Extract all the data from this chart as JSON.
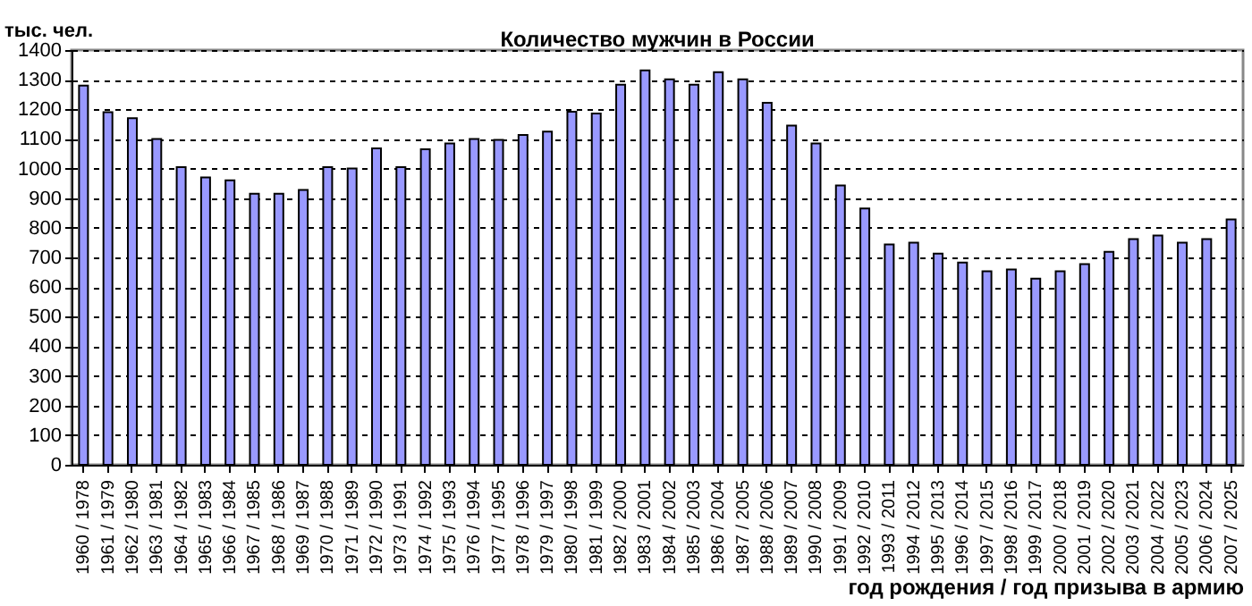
{
  "chart_data": {
    "type": "bar",
    "title": "Количество мужчин в России",
    "xlabel": "год рождения / год призыва в армию",
    "ylabel": "тыс. чел.",
    "categories": [
      "1960 / 1978",
      "1961 / 1979",
      "1962 / 1980",
      "1963 / 1981",
      "1964 / 1982",
      "1965 / 1983",
      "1966 / 1984",
      "1967 / 1985",
      "1968 / 1986",
      "1969 / 1987",
      "1970 / 1988",
      "1971 / 1989",
      "1972 / 1990",
      "1973 / 1991",
      "1974 / 1992",
      "1975 / 1993",
      "1976 / 1994",
      "1977 / 1995",
      "1978 / 1996",
      "1979 / 1997",
      "1980 / 1998",
      "1981 / 1999",
      "1982 / 2000",
      "1983 / 2001",
      "1984 / 2002",
      "1985 / 2003",
      "1986 / 2004",
      "1987 / 2005",
      "1988 / 2006",
      "1989 / 2007",
      "1990 / 2008",
      "1991 / 2009",
      "1992 / 2010",
      "1993 / 2011",
      "1994 / 2012",
      "1995 / 2013",
      "1996 / 2014",
      "1997 / 2015",
      "1998 / 2016",
      "1999 / 2017",
      "2000 / 2018",
      "2001 / 2019",
      "2002 / 2020",
      "2003 / 2021",
      "2004 / 2022",
      "2005 / 2023",
      "2006 / 2024",
      "2007 / 2025"
    ],
    "values": [
      1280,
      1190,
      1170,
      1100,
      1005,
      970,
      960,
      915,
      915,
      928,
      1005,
      1000,
      1068,
      1005,
      1065,
      1085,
      1100,
      1097,
      1113,
      1125,
      1192,
      1186,
      1283,
      1331,
      1301,
      1283,
      1325,
      1301,
      1222,
      1145,
      1085,
      943,
      865,
      744,
      750,
      713,
      683,
      653,
      659,
      628,
      653,
      677,
      719,
      762,
      774,
      750,
      762,
      828
    ],
    "color": "#9999ff",
    "ylim": [
      0,
      1400
    ],
    "yticks": [
      0,
      100,
      200,
      300,
      400,
      500,
      600,
      700,
      800,
      900,
      1000,
      1100,
      1200,
      1300,
      1400
    ],
    "grid": "y"
  }
}
